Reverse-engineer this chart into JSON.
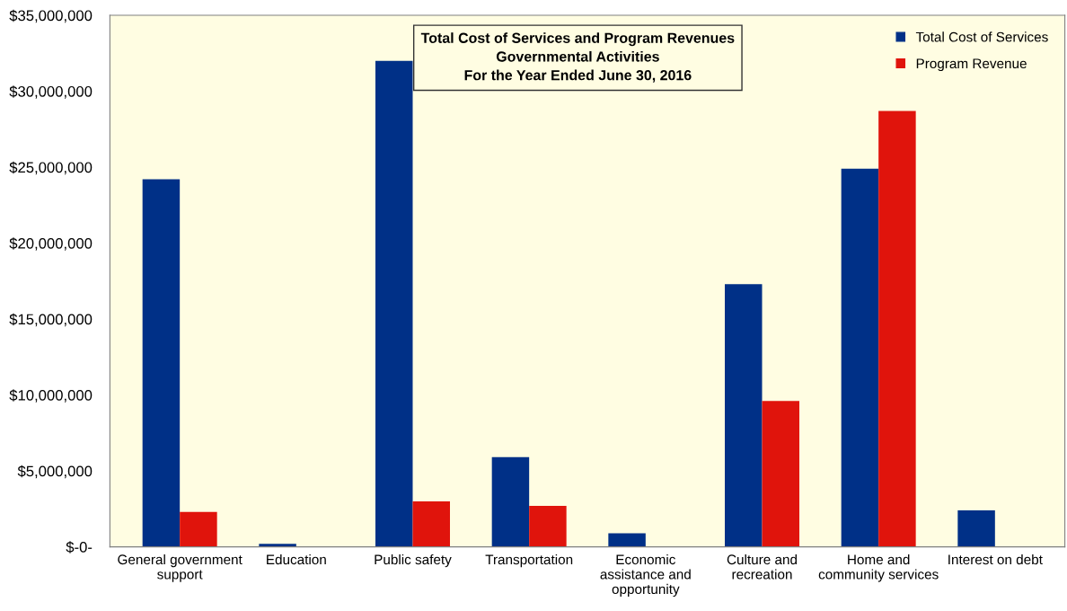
{
  "chart_data": {
    "type": "bar",
    "title": "Total Cost of Services and Program Revenues\nGovernmental Activities\nFor the Year Ended June 30, 2016",
    "categories": [
      "General government\nsupport",
      "Education",
      "Public safety",
      "Transportation",
      "Economic\nassistance and\nopportunity",
      "Culture and\nrecreation",
      "Home and\ncommunity services",
      "Interest on debt"
    ],
    "series": [
      {
        "name": "Total Cost of Services",
        "color": "#003087",
        "values": [
          24200000,
          200000,
          32000000,
          5900000,
          900000,
          17300000,
          24900000,
          2400000
        ]
      },
      {
        "name": "Program Revenue",
        "color": "#e0140c",
        "values": [
          2300000,
          0,
          3000000,
          2700000,
          0,
          9600000,
          28700000,
          0
        ]
      }
    ],
    "ylim": [
      0,
      35000000
    ],
    "yticks": [
      {
        "value": 0,
        "label": "$-0-"
      },
      {
        "value": 5000000,
        "label": "$5,000,000"
      },
      {
        "value": 10000000,
        "label": "$10,000,000"
      },
      {
        "value": 15000000,
        "label": "$15,000,000"
      },
      {
        "value": 20000000,
        "label": "$20,000,000"
      },
      {
        "value": 25000000,
        "label": "$25,000,000"
      },
      {
        "value": 30000000,
        "label": "$30,000,000"
      },
      {
        "value": 35000000,
        "label": "$35,000,000"
      }
    ],
    "grid": false,
    "legend": "top right"
  }
}
